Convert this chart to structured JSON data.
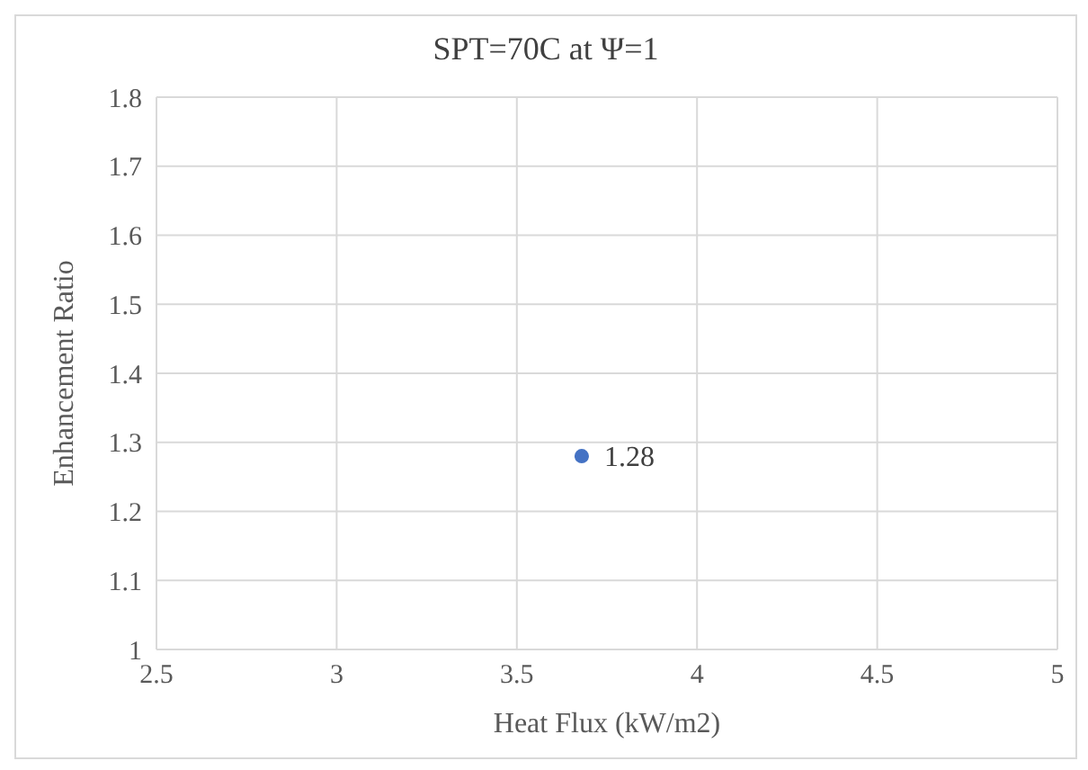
{
  "chart_data": {
    "type": "scatter",
    "title": "SPT=70C at Ψ=1",
    "xlabel": "Heat Flux  (kW/m2)",
    "ylabel": "Enhancement  Ratio",
    "x": [
      3.68
    ],
    "values": [
      1.28
    ],
    "color": "#4472c4",
    "data_labels": true,
    "xlim": [
      2.5,
      5
    ],
    "xticks": [
      2.5,
      3,
      3.5,
      4,
      4.5,
      5
    ],
    "ylim": [
      1,
      1.8
    ],
    "yticks": [
      1,
      1.1,
      1.2,
      1.3,
      1.4,
      1.5,
      1.6,
      1.7,
      1.8
    ],
    "grid": true,
    "marker": "circle"
  }
}
